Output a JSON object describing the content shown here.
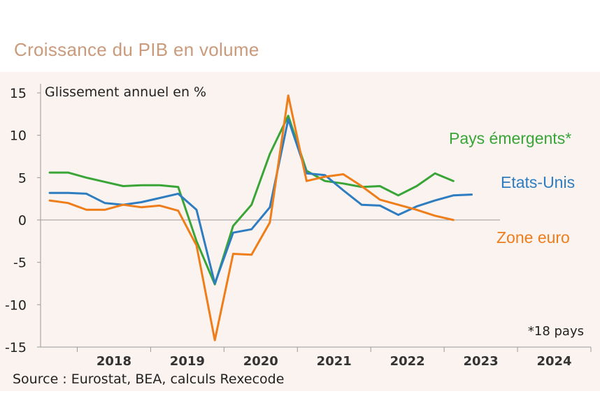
{
  "title": "Croissance du PIB en volume",
  "source": "Source : Eurostat, BEA, calculs Rexecode",
  "chart_data": {
    "type": "line",
    "ylabel": "Glissement annuel en %",
    "ylim": [
      -15,
      15
    ],
    "yticks": [
      15,
      10,
      5,
      0,
      -5,
      -10,
      -15
    ],
    "ytick_labels": [
      "15",
      "10",
      "5",
      "0",
      "-5",
      "-10",
      "-15"
    ],
    "xlim": [
      2017.5,
      2025.0
    ],
    "year_ticks": [
      2018,
      2019,
      2020,
      2021,
      2022,
      2023,
      2024
    ],
    "year_labels": [
      "2018",
      "2019",
      "2020",
      "2021",
      "2022",
      "2023",
      "2024"
    ],
    "note": "*18 pays",
    "series": [
      {
        "name": "Pays émergents*",
        "color": "#3aa537",
        "x": [
          2017.625,
          2017.875,
          2018.125,
          2018.375,
          2018.625,
          2018.875,
          2019.125,
          2019.375,
          2019.625,
          2019.875,
          2020.125,
          2020.375,
          2020.625,
          2020.875,
          2021.125,
          2021.375,
          2021.625,
          2021.875,
          2022.125,
          2022.375,
          2022.625,
          2022.875,
          2023.125,
          2023.375
        ],
        "values": [
          5.6,
          5.6,
          5.0,
          4.5,
          4.0,
          4.1,
          4.1,
          3.9,
          -2.5,
          -7.6,
          -0.7,
          1.8,
          7.8,
          12.3,
          5.8,
          4.6,
          4.3,
          3.9,
          4.0,
          2.9,
          4.0,
          5.5,
          4.6,
          null
        ],
        "label": "Pays émergents*"
      },
      {
        "name": "Etats-Unis",
        "color": "#2e7dc0",
        "x": [
          2017.625,
          2017.875,
          2018.125,
          2018.375,
          2018.625,
          2018.875,
          2019.125,
          2019.375,
          2019.625,
          2019.875,
          2020.125,
          2020.375,
          2020.625,
          2020.875,
          2021.125,
          2021.375,
          2021.625,
          2021.875,
          2022.125,
          2022.375,
          2022.625,
          2022.875,
          2023.125,
          2023.375
        ],
        "values": [
          3.2,
          3.2,
          3.1,
          2.0,
          1.8,
          2.1,
          2.6,
          3.1,
          1.2,
          -7.5,
          -1.5,
          -1.1,
          1.5,
          11.9,
          5.5,
          5.3,
          3.5,
          1.8,
          1.7,
          0.6,
          1.6,
          2.3,
          2.9,
          3.0
        ],
        "label": "Etats-Unis"
      },
      {
        "name": "Zone euro",
        "color": "#ef7d1a",
        "x": [
          2017.625,
          2017.875,
          2018.125,
          2018.375,
          2018.625,
          2018.875,
          2019.125,
          2019.375,
          2019.625,
          2019.875,
          2020.125,
          2020.375,
          2020.625,
          2020.875,
          2021.125,
          2021.375,
          2021.625,
          2021.875,
          2022.125,
          2022.375,
          2022.625,
          2022.875,
          2023.125,
          2023.375
        ],
        "values": [
          2.3,
          2.0,
          1.2,
          1.2,
          1.8,
          1.5,
          1.7,
          1.1,
          -3.0,
          -14.2,
          -4.0,
          -4.1,
          -0.3,
          14.7,
          4.6,
          5.1,
          5.4,
          4.0,
          2.4,
          1.8,
          1.2,
          0.5,
          0.0,
          null
        ],
        "label": "Zone euro"
      }
    ]
  }
}
